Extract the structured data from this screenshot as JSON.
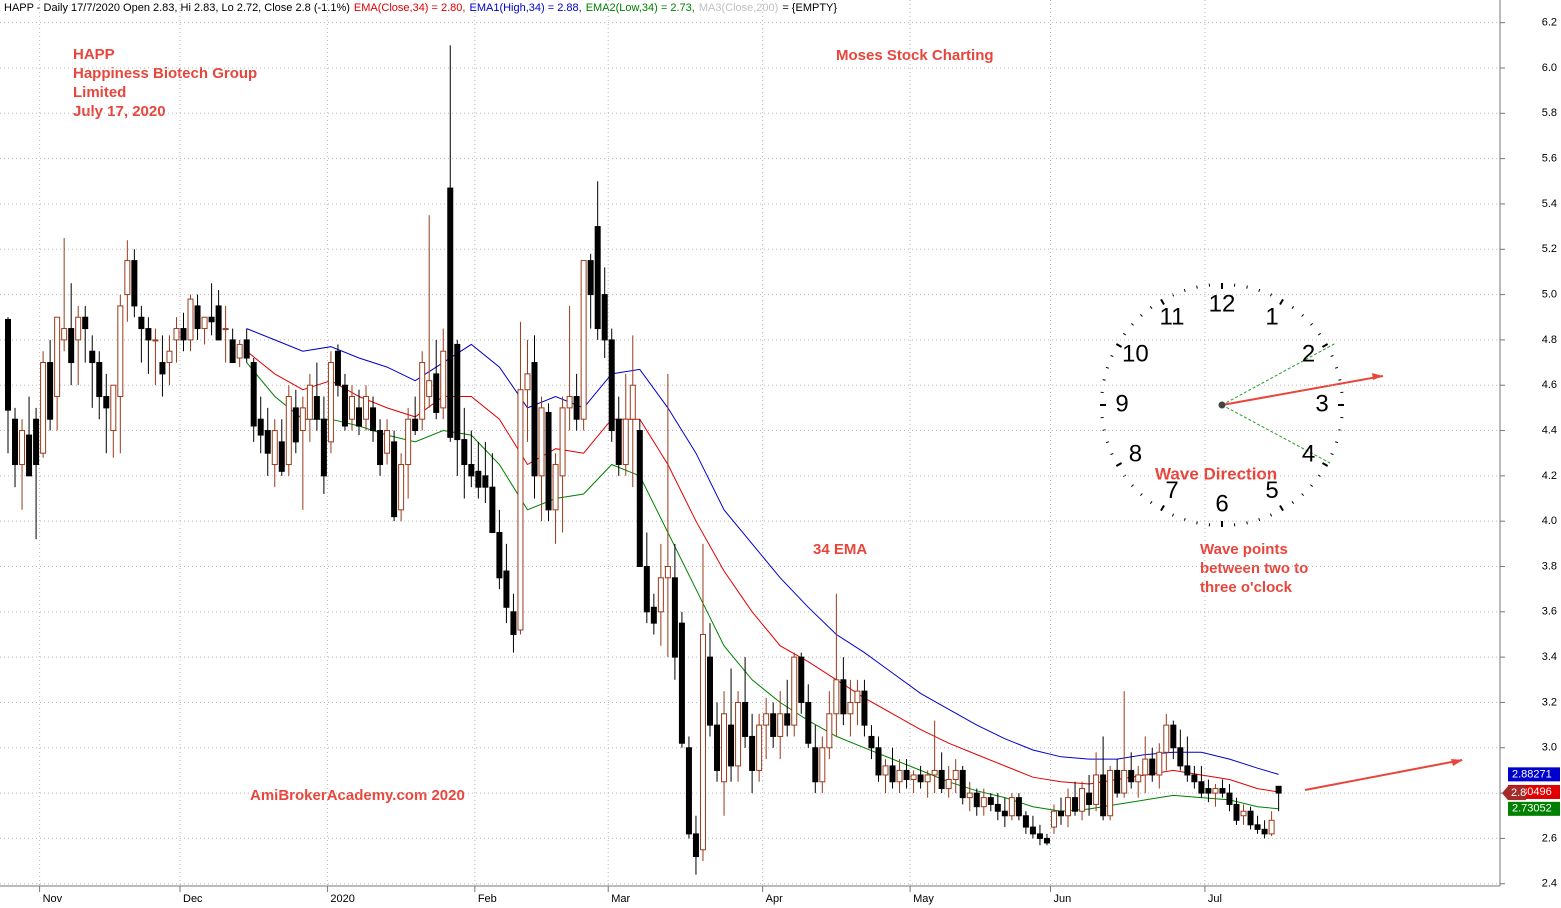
{
  "chart_data": {
    "type": "candlestick",
    "header": [
      {
        "text": "HAPP - Daily 17/7/2020 Open 2.83, Hi 2.83, Lo 2.72, Close 2.8 (-1.1%)",
        "color": "#000000"
      },
      {
        "text": "EMA(Close,34) = 2.80,",
        "color": "#e00000"
      },
      {
        "text": "EMA1(High,34) = 2.88,",
        "color": "#0000cc"
      },
      {
        "text": "EMA2(Low,34) = 2.73,",
        "color": "#008000"
      },
      {
        "text": "MA3(Close,200)",
        "color": "#c0c0c0"
      },
      {
        "text": "= {EMPTY}",
        "color": "#000000"
      }
    ],
    "annotations": {
      "ticker": "HAPP",
      "company_1": "Happiness Biotech Group",
      "company_2": "Limited",
      "date": "July 17, 2020",
      "brand": "Moses Stock Charting",
      "ema_label": "34 EMA",
      "note_1": "Wave points",
      "note_2": "between two to",
      "note_3": "three o'clock",
      "site": "AmiBrokerAcademy.com  2020"
    },
    "clock": {
      "labels": [
        "12",
        "1",
        "2",
        "3",
        "4",
        "5",
        "6",
        "7",
        "8",
        "9",
        "10",
        "11"
      ],
      "caption": "Wave Direction"
    },
    "categories": [
      null,
      null,
      null,
      null,
      null,
      "Nov",
      null,
      null,
      null,
      null,
      null,
      null,
      null,
      null,
      null,
      null,
      null,
      null,
      null,
      null,
      null,
      null,
      null,
      null,
      null,
      "Dec",
      null,
      null,
      null,
      null,
      null,
      null,
      null,
      null,
      null,
      null,
      null,
      null,
      null,
      null,
      null,
      null,
      null,
      null,
      null,
      null,
      "2020",
      null,
      null,
      null,
      null,
      null,
      null,
      null,
      null,
      null,
      null,
      null,
      null,
      null,
      null,
      null,
      null,
      null,
      null,
      null,
      null,
      "Feb",
      null,
      null,
      null,
      null,
      null,
      null,
      null,
      null,
      null,
      null,
      null,
      null,
      null,
      null,
      null,
      null,
      null,
      null,
      "Mar",
      null,
      null,
      null,
      null,
      null,
      null,
      null,
      null,
      null,
      null,
      null,
      null,
      null,
      null,
      null,
      null,
      null,
      null,
      null,
      null,
      null,
      "Apr",
      null,
      null,
      null,
      null,
      null,
      null,
      null,
      null,
      null,
      null,
      null,
      null,
      null,
      null,
      null,
      null,
      null,
      null,
      null,
      null,
      "May",
      null,
      null,
      null,
      null,
      null,
      null,
      null,
      null,
      null,
      null,
      null,
      null,
      null,
      null,
      null,
      null,
      null,
      null,
      null,
      "Jun",
      null,
      null,
      null,
      null,
      null,
      null,
      null,
      null,
      null,
      null,
      null,
      null,
      null,
      null,
      null,
      null,
      null,
      null,
      null,
      null,
      null,
      "Jul",
      null,
      null,
      null,
      null,
      null,
      null,
      null,
      null,
      null,
      null
    ],
    "open": [
      4.89,
      4.45,
      4.25,
      4.38,
      4.45,
      4.3,
      4.7,
      4.55,
      4.8,
      4.85,
      4.8,
      4.9,
      4.75,
      4.7,
      4.55,
      4.4,
      4.55,
      5.0,
      5.15,
      4.9,
      4.85,
      4.8,
      4.7,
      4.7,
      4.8,
      4.85,
      4.8,
      4.95,
      4.85,
      4.9,
      4.95,
      4.85,
      4.8,
      4.72,
      4.8,
      4.7,
      4.45,
      4.4,
      4.25,
      4.35,
      4.25,
      4.5,
      4.4,
      4.45,
      4.55,
      4.45,
      4.35,
      4.75,
      4.6,
      4.45,
      4.5,
      4.45,
      4.5,
      4.4,
      4.3,
      4.35,
      4.05,
      4.25,
      4.45,
      4.45,
      4.55,
      4.65,
      4.5,
      5.47,
      4.78,
      4.36,
      4.25,
      4.22,
      4.2,
      4.15,
      3.95,
      3.78,
      3.6,
      3.52,
      4.58,
      4.7,
      4.2,
      4.48,
      4.05,
      4.2,
      4.5,
      4.55,
      4.45,
      5.15,
      5.3,
      5.0,
      4.8,
      4.45,
      4.25,
      4.45,
      4.4,
      3.8,
      3.62,
      3.6,
      3.75,
      3.75,
      3.55,
      3.0,
      2.62,
      2.55,
      3.4,
      3.1,
      2.85,
      3.1,
      2.92,
      3.2,
      3.05,
      2.9,
      3.1,
      3.15,
      3.05,
      3.15,
      3.1,
      3.4,
      3.2,
      3.0,
      2.85,
      3.0,
      3.15,
      3.3,
      3.15,
      3.2,
      3.25,
      3.05,
      3.0,
      2.88,
      2.92,
      2.85,
      2.9,
      2.86,
      2.88,
      2.85,
      2.88,
      2.9,
      2.82,
      2.86,
      2.9,
      2.78,
      2.8,
      2.74,
      2.78,
      2.75,
      2.72,
      2.7,
      2.78,
      2.7,
      2.65,
      2.62,
      2.6,
      2.65,
      2.72,
      2.7,
      2.78,
      2.72,
      2.8,
      2.75,
      2.88,
      2.7,
      2.9,
      2.8,
      2.9,
      2.85,
      2.88,
      2.95,
      2.88,
      2.98,
      3.1,
      3.0,
      2.92,
      2.88,
      2.85,
      2.82,
      2.8,
      2.82,
      2.8,
      2.75,
      2.7,
      2.72,
      2.66,
      2.64,
      2.62,
      2.83
    ],
    "high": [
      4.9,
      4.5,
      4.45,
      4.55,
      4.5,
      4.75,
      4.8,
      4.9,
      5.25,
      5.05,
      4.95,
      4.95,
      4.82,
      4.75,
      4.65,
      4.6,
      5.0,
      5.24,
      5.2,
      4.95,
      4.9,
      4.85,
      4.82,
      4.82,
      4.9,
      4.92,
      5.0,
      5.0,
      4.9,
      5.05,
      5.02,
      4.95,
      4.85,
      4.8,
      4.85,
      4.72,
      4.55,
      4.5,
      4.45,
      4.45,
      4.6,
      4.58,
      4.55,
      4.65,
      4.7,
      4.55,
      4.75,
      4.78,
      4.65,
      4.6,
      4.58,
      4.6,
      4.55,
      4.45,
      4.45,
      4.4,
      4.3,
      4.5,
      4.55,
      4.75,
      5.35,
      4.8,
      4.85,
      6.1,
      4.8,
      4.5,
      4.4,
      4.35,
      4.35,
      4.3,
      4.05,
      3.9,
      3.68,
      4.88,
      4.8,
      4.82,
      4.55,
      4.52,
      4.3,
      4.55,
      4.95,
      4.65,
      5.15,
      5.18,
      5.5,
      5.12,
      4.85,
      4.55,
      4.65,
      4.82,
      4.45,
      3.95,
      3.68,
      3.9,
      4.65,
      3.9,
      3.6,
      3.05,
      2.7,
      3.9,
      3.55,
      3.2,
      3.25,
      3.35,
      3.25,
      3.4,
      3.15,
      3.15,
      3.22,
      3.2,
      3.25,
      3.3,
      3.42,
      3.42,
      3.28,
      3.1,
      3.05,
      3.25,
      3.68,
      3.4,
      3.3,
      3.3,
      3.3,
      3.1,
      3.05,
      2.95,
      3.0,
      2.95,
      2.95,
      2.9,
      2.92,
      2.9,
      3.12,
      2.98,
      2.92,
      2.95,
      2.92,
      2.85,
      2.82,
      2.82,
      2.8,
      2.8,
      2.78,
      2.8,
      2.8,
      2.72,
      2.7,
      2.66,
      2.62,
      2.75,
      2.78,
      2.82,
      2.85,
      2.85,
      2.88,
      2.98,
      3.05,
      2.92,
      2.95,
      3.25,
      2.98,
      2.92,
      3.05,
      3.0,
      3.02,
      3.15,
      3.12,
      3.08,
      3.05,
      2.92,
      2.92,
      2.86,
      2.84,
      2.86,
      2.84,
      2.78,
      2.75,
      2.74,
      2.7,
      2.68,
      2.72,
      2.83
    ],
    "low": [
      4.3,
      4.15,
      4.05,
      4.2,
      3.92,
      4.28,
      4.4,
      4.4,
      4.75,
      4.6,
      4.6,
      4.7,
      4.5,
      4.45,
      4.3,
      4.28,
      4.3,
      4.88,
      4.9,
      4.7,
      4.65,
      4.6,
      4.55,
      4.6,
      4.7,
      4.75,
      4.75,
      4.8,
      4.78,
      4.82,
      4.8,
      4.7,
      4.7,
      4.68,
      4.7,
      4.35,
      4.3,
      4.2,
      4.15,
      4.2,
      4.2,
      4.3,
      4.05,
      4.35,
      4.4,
      4.12,
      4.3,
      4.55,
      4.4,
      4.4,
      4.38,
      4.4,
      4.35,
      4.2,
      4.25,
      4.0,
      4.0,
      4.1,
      4.38,
      4.4,
      4.5,
      4.45,
      4.45,
      4.35,
      4.2,
      4.1,
      4.15,
      4.1,
      4.08,
      3.95,
      3.7,
      3.55,
      3.42,
      3.5,
      4.35,
      4.1,
      4.0,
      4.0,
      3.9,
      3.95,
      4.4,
      4.4,
      4.4,
      4.85,
      4.8,
      4.72,
      4.35,
      4.2,
      4.2,
      4.15,
      3.8,
      3.55,
      3.5,
      3.45,
      3.4,
      3.3,
      3.0,
      2.6,
      2.44,
      2.5,
      3.05,
      2.85,
      2.7,
      2.85,
      2.85,
      3.0,
      2.8,
      2.85,
      2.95,
      3.0,
      2.95,
      3.05,
      3.05,
      3.15,
      3.0,
      2.8,
      2.8,
      2.95,
      3.05,
      3.1,
      3.05,
      3.1,
      3.05,
      2.95,
      2.85,
      2.8,
      2.82,
      2.8,
      2.82,
      2.8,
      2.82,
      2.78,
      2.8,
      2.8,
      2.78,
      2.8,
      2.75,
      2.72,
      2.7,
      2.7,
      2.72,
      2.68,
      2.65,
      2.68,
      2.68,
      2.62,
      2.6,
      2.57,
      2.57,
      2.62,
      2.66,
      2.65,
      2.7,
      2.68,
      2.7,
      2.72,
      2.68,
      2.68,
      2.78,
      2.78,
      2.82,
      2.78,
      2.8,
      2.85,
      2.82,
      2.9,
      2.95,
      2.9,
      2.85,
      2.82,
      2.78,
      2.76,
      2.74,
      2.78,
      2.72,
      2.66,
      2.66,
      2.64,
      2.62,
      2.6,
      2.61,
      2.72
    ],
    "close": [
      4.49,
      4.25,
      4.4,
      4.2,
      4.25,
      4.7,
      4.45,
      4.9,
      4.85,
      4.7,
      4.9,
      4.85,
      4.7,
      4.55,
      4.5,
      4.6,
      4.95,
      5.15,
      4.95,
      4.85,
      4.8,
      4.8,
      4.65,
      4.75,
      4.85,
      4.8,
      4.98,
      4.85,
      4.9,
      4.88,
      4.8,
      4.85,
      4.7,
      4.78,
      4.72,
      4.42,
      4.38,
      4.3,
      4.4,
      4.22,
      4.55,
      4.35,
      4.5,
      4.6,
      4.45,
      4.2,
      4.7,
      4.6,
      4.42,
      4.55,
      4.42,
      4.55,
      4.4,
      4.25,
      4.4,
      4.02,
      4.25,
      4.45,
      4.4,
      4.7,
      4.62,
      4.48,
      4.75,
      4.37,
      4.36,
      4.25,
      4.2,
      4.15,
      4.15,
      3.95,
      3.75,
      3.62,
      3.5,
      4.58,
      4.65,
      4.2,
      4.5,
      4.05,
      4.25,
      4.5,
      4.55,
      4.45,
      5.15,
      5.0,
      4.85,
      4.8,
      4.4,
      4.25,
      4.45,
      4.6,
      3.8,
      3.6,
      3.55,
      3.75,
      3.8,
      3.4,
      3.02,
      2.62,
      2.52,
      3.5,
      3.1,
      2.9,
      3.15,
      2.92,
      3.2,
      3.05,
      2.9,
      3.1,
      3.15,
      3.05,
      3.15,
      3.1,
      3.4,
      3.2,
      3.02,
      2.85,
      3.0,
      3.15,
      3.3,
      3.15,
      3.2,
      3.25,
      3.1,
      3.0,
      2.88,
      2.92,
      2.85,
      2.9,
      2.86,
      2.88,
      2.85,
      2.88,
      2.9,
      2.82,
      2.86,
      2.9,
      2.78,
      2.8,
      2.74,
      2.78,
      2.75,
      2.72,
      2.7,
      2.78,
      2.7,
      2.65,
      2.62,
      2.6,
      2.58,
      2.72,
      2.7,
      2.78,
      2.72,
      2.82,
      2.75,
      2.88,
      2.7,
      2.9,
      2.8,
      2.9,
      2.85,
      2.88,
      2.95,
      2.88,
      2.98,
      3.1,
      3.0,
      2.92,
      2.88,
      2.85,
      2.8,
      2.8,
      2.82,
      2.8,
      2.75,
      2.68,
      2.72,
      2.66,
      2.64,
      2.62,
      2.68,
      2.8
    ],
    "up_color": "#9a3b1b",
    "down_color": "#000000",
    "close_tag_color": "#a52a2a",
    "series": [
      {
        "color": "#0000cc",
        "x": [
          34,
          38,
          42,
          46,
          50,
          54,
          58,
          62,
          66,
          70,
          74,
          78,
          82,
          86,
          90,
          94,
          98,
          102,
          106,
          110,
          114,
          118,
          122,
          126,
          130,
          134,
          138,
          142,
          146,
          150,
          154,
          158,
          162,
          166,
          170,
          174,
          178,
          181
        ],
        "values": [
          4.85,
          4.8,
          4.75,
          4.77,
          4.72,
          4.68,
          4.62,
          4.7,
          4.78,
          4.68,
          4.5,
          4.55,
          4.5,
          4.65,
          4.67,
          4.5,
          4.3,
          4.05,
          3.9,
          3.75,
          3.62,
          3.5,
          3.42,
          3.33,
          3.24,
          3.17,
          3.1,
          3.04,
          2.99,
          2.96,
          2.95,
          2.95,
          2.97,
          2.98,
          2.98,
          2.95,
          2.91,
          2.88271
        ]
      },
      {
        "color": "#e00000",
        "x": [
          34,
          38,
          42,
          46,
          50,
          54,
          58,
          62,
          66,
          70,
          74,
          78,
          82,
          86,
          90,
          94,
          98,
          102,
          106,
          110,
          114,
          118,
          122,
          126,
          130,
          134,
          138,
          142,
          146,
          150,
          154,
          158,
          162,
          166,
          170,
          174,
          178,
          181
        ],
        "values": [
          4.75,
          4.65,
          4.58,
          4.62,
          4.55,
          4.5,
          4.46,
          4.55,
          4.55,
          4.45,
          4.25,
          4.32,
          4.3,
          4.45,
          4.45,
          4.25,
          4.0,
          3.78,
          3.6,
          3.45,
          3.38,
          3.3,
          3.22,
          3.15,
          3.08,
          3.02,
          2.97,
          2.92,
          2.87,
          2.85,
          2.84,
          2.86,
          2.88,
          2.9,
          2.88,
          2.86,
          2.82,
          2.80496
        ]
      },
      {
        "color": "#008000",
        "x": [
          34,
          38,
          42,
          46,
          50,
          54,
          58,
          62,
          66,
          70,
          74,
          78,
          82,
          86,
          90,
          94,
          98,
          102,
          106,
          110,
          114,
          118,
          122,
          126,
          130,
          134,
          138,
          142,
          146,
          150,
          154,
          158,
          162,
          166,
          170,
          174,
          178,
          181
        ],
        "values": [
          4.7,
          4.55,
          4.45,
          4.45,
          4.42,
          4.38,
          4.35,
          4.4,
          4.38,
          4.25,
          4.05,
          4.1,
          4.12,
          4.25,
          4.2,
          3.95,
          3.7,
          3.45,
          3.3,
          3.2,
          3.12,
          3.05,
          3.0,
          2.95,
          2.9,
          2.85,
          2.81,
          2.78,
          2.74,
          2.72,
          2.73,
          2.75,
          2.77,
          2.79,
          2.78,
          2.77,
          2.74,
          2.73052
        ]
      }
    ],
    "ylim": [
      2.39,
      6.3
    ],
    "yticks": [
      2.4,
      2.6,
      2.8,
      {
        "value": 3,
        "label": "3.0"
      },
      3.2,
      3.4,
      3.6,
      3.8,
      {
        "value": 4,
        "label": "4.0"
      },
      4.2,
      4.4,
      4.6,
      4.8,
      {
        "value": 5,
        "label": "5.0"
      },
      5.2,
      5.4,
      5.6,
      5.8,
      {
        "value": 6,
        "label": "6.0"
      },
      6.2
    ],
    "grid": true
  }
}
